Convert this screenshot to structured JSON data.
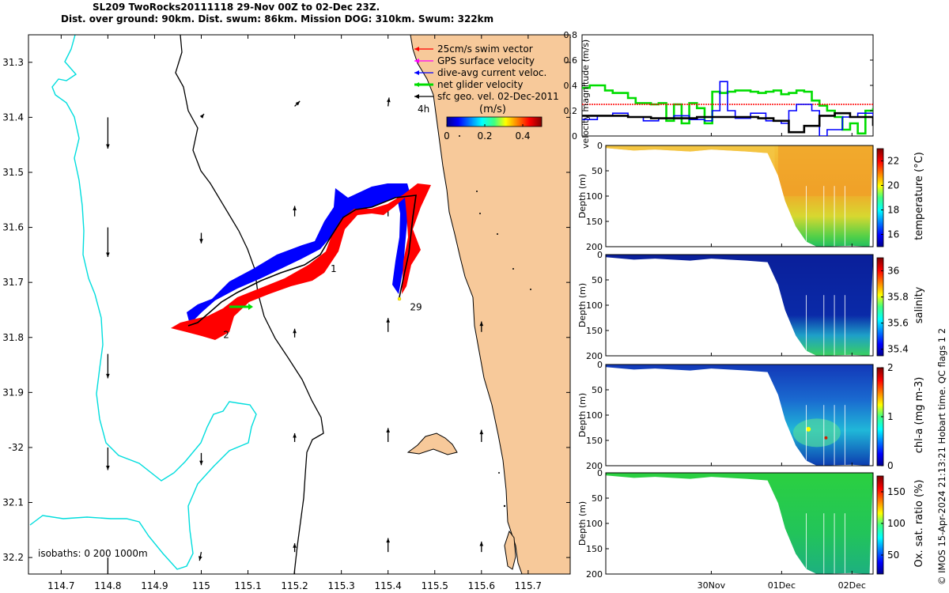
{
  "title": {
    "line1": "SL209 TwoRocks20111118 29-Nov 00Z to 02-Dec 23Z.",
    "line2": "Dist. over ground: 90km. Dist. swum: 86km. Mission DOG: 310km. Swum: 322km"
  },
  "credit": "© IMOS 15-Apr-2024 21:13:21 Hobart time. QC flags 1  2",
  "chart_data": [
    {
      "type": "map",
      "xlim": [
        114.63,
        115.79
      ],
      "ylim": [
        32.23,
        31.25
      ],
      "x_ticks": [
        114.7,
        114.8,
        114.9,
        115,
        115.1,
        115.2,
        115.3,
        115.4,
        115.5,
        115.6,
        115.7
      ],
      "x_tick_labels": [
        "114.7",
        "114.8",
        "114.9",
        "115",
        "115.1",
        "115.2",
        "115.3",
        "115.4",
        "115.5",
        "115.6",
        "115.7"
      ],
      "y_ticks": [
        31.3,
        31.4,
        31.5,
        31.6,
        31.7,
        31.8,
        31.9,
        32.0,
        32.1,
        32.2
      ],
      "y_tick_labels": [
        "31.3",
        "31.4",
        "31.5",
        "31.6",
        "31.7",
        "31.8",
        "31.9",
        "-32",
        "32.1",
        "32.2"
      ],
      "legend": [
        {
          "label": "25cm/s swim vector",
          "color": "#ff0000"
        },
        {
          "label": "GPS surface velocity",
          "color": "#ff00ff"
        },
        {
          "label": "dive-avg current veloc.",
          "color": "#0000ff"
        },
        {
          "label": "net glider velocity",
          "color": "#00dd00"
        },
        {
          "label": "sfc geo. vel. 02-Dec-2011",
          "color": "#000000"
        }
      ],
      "legend_extra": "4h",
      "colorbar": {
        "label": "(m/s)",
        "ticks": [
          0,
          0.2,
          0.4
        ],
        "tick_labels": [
          "0",
          "0.2",
          "0.4"
        ],
        "range": [
          0,
          0.5
        ]
      },
      "isobath_note": "isobaths: 0   200  1000m",
      "track_labels": [
        {
          "text": "29",
          "lon": 115.43,
          "lat": 31.745
        },
        {
          "text": "1",
          "lon": 115.26,
          "lat": 31.675
        },
        {
          "text": "2",
          "lon": 115.03,
          "lat": 31.795
        }
      ],
      "track": [
        {
          "lon": 115.43,
          "lat": 31.74
        },
        {
          "lon": 115.45,
          "lat": 31.67
        },
        {
          "lon": 115.47,
          "lat": 31.55
        },
        {
          "lon": 115.4,
          "lat": 31.56
        },
        {
          "lon": 115.37,
          "lat": 31.58
        },
        {
          "lon": 115.31,
          "lat": 31.58
        },
        {
          "lon": 115.28,
          "lat": 31.59
        },
        {
          "lon": 115.24,
          "lat": 31.67
        },
        {
          "lon": 115.19,
          "lat": 31.71
        },
        {
          "lon": 115.12,
          "lat": 31.73
        },
        {
          "lon": 115.05,
          "lat": 31.77
        },
        {
          "lon": 115.03,
          "lat": 31.78
        },
        {
          "lon": 115.02,
          "lat": 31.785
        },
        {
          "lon": 114.98,
          "lat": 31.79
        }
      ],
      "surface_vectors": [
        {
          "lon": 114.8,
          "lat": 31.4,
          "u": 0.0,
          "v": -0.9
        },
        {
          "lon": 114.8,
          "lat": 31.6,
          "u": 0.0,
          "v": -0.85
        },
        {
          "lon": 114.8,
          "lat": 31.83,
          "u": 0.0,
          "v": -0.7
        },
        {
          "lon": 114.8,
          "lat": 32.0,
          "u": 0.0,
          "v": -0.65
        },
        {
          "lon": 114.8,
          "lat": 32.2,
          "u": 0.0,
          "v": -0.6
        },
        {
          "lon": 115.0,
          "lat": 31.4,
          "u": 0.08,
          "v": 0.1
        },
        {
          "lon": 115.0,
          "lat": 31.61,
          "u": 0.0,
          "v": -0.3
        },
        {
          "lon": 115.0,
          "lat": 32.01,
          "u": 0.0,
          "v": -0.35
        },
        {
          "lon": 115.0,
          "lat": 32.19,
          "u": -0.05,
          "v": -0.25
        },
        {
          "lon": 115.2,
          "lat": 31.38,
          "u": 0.15,
          "v": 0.15
        },
        {
          "lon": 115.2,
          "lat": 31.58,
          "u": 0.0,
          "v": 0.3
        },
        {
          "lon": 115.2,
          "lat": 31.8,
          "u": 0.0,
          "v": 0.25
        },
        {
          "lon": 115.2,
          "lat": 31.99,
          "u": 0.0,
          "v": 0.25
        },
        {
          "lon": 115.2,
          "lat": 32.19,
          "u": 0.0,
          "v": 0.25
        },
        {
          "lon": 115.4,
          "lat": 31.38,
          "u": 0.03,
          "v": 0.25
        },
        {
          "lon": 115.4,
          "lat": 31.58,
          "u": 0.0,
          "v": 0.3
        },
        {
          "lon": 115.4,
          "lat": 31.79,
          "u": 0.0,
          "v": 0.4
        },
        {
          "lon": 115.4,
          "lat": 31.99,
          "u": 0.0,
          "v": 0.4
        },
        {
          "lon": 115.4,
          "lat": 32.19,
          "u": 0.0,
          "v": 0.4
        },
        {
          "lon": 115.6,
          "lat": 31.79,
          "u": 0.0,
          "v": 0.3
        },
        {
          "lon": 115.6,
          "lat": 31.99,
          "u": 0.0,
          "v": 0.35
        },
        {
          "lon": 115.6,
          "lat": 32.19,
          "u": 0.0,
          "v": 0.3
        }
      ]
    },
    {
      "type": "line",
      "ylabel": "velocity magnitude (m/s)",
      "ylim": [
        0,
        0.8
      ],
      "y_ticks": [
        0,
        0.2,
        0.4,
        0.6,
        0.8
      ],
      "y_tick_labels": [
        "0",
        "0.2",
        "0.4",
        "0.6",
        "0.8"
      ],
      "xlim": [
        28.5,
        32.3
      ],
      "series": [
        {
          "color": "#00dd00",
          "x": [
            28.5,
            28.6,
            28.8,
            28.9,
            29.1,
            29.2,
            29.4,
            29.5,
            29.6,
            29.7,
            29.8,
            29.9,
            30.0,
            30.1,
            30.2,
            30.3,
            30.4,
            30.5,
            30.6,
            30.7,
            30.8,
            30.9,
            31.0,
            31.1,
            31.2,
            31.3,
            31.4,
            31.5,
            31.6,
            31.7,
            31.8,
            31.9,
            32.0,
            32.1,
            32.2,
            32.3
          ],
          "y": [
            0.38,
            0.4,
            0.36,
            0.34,
            0.3,
            0.26,
            0.25,
            0.26,
            0.12,
            0.25,
            0.1,
            0.26,
            0.22,
            0.1,
            0.35,
            0.34,
            0.35,
            0.36,
            0.36,
            0.35,
            0.34,
            0.35,
            0.36,
            0.33,
            0.34,
            0.36,
            0.35,
            0.28,
            0.24,
            0.2,
            0.15,
            0.05,
            0.1,
            0.02,
            0.2,
            0.22
          ]
        },
        {
          "color": "#ff0000",
          "x": [
            28.5,
            32.3
          ],
          "y": [
            0.25,
            0.25
          ]
        },
        {
          "color": "#0000ff",
          "x": [
            28.5,
            28.7,
            28.9,
            29.1,
            29.3,
            29.5,
            29.7,
            29.9,
            30.1,
            30.2,
            30.3,
            30.4,
            30.5,
            30.7,
            30.9,
            31.1,
            31.2,
            31.3,
            31.5,
            31.6,
            31.7,
            31.9,
            32.1,
            32.3
          ],
          "y": [
            0.13,
            0.16,
            0.18,
            0.15,
            0.12,
            0.14,
            0.16,
            0.13,
            0.12,
            0.2,
            0.43,
            0.2,
            0.14,
            0.18,
            0.12,
            0.1,
            0.2,
            0.25,
            0.2,
            0.0,
            0.05,
            0.15,
            0.18,
            0.1
          ]
        },
        {
          "color": "#000000",
          "x": [
            28.5,
            28.8,
            29.1,
            29.4,
            29.7,
            30.0,
            30.3,
            30.6,
            30.8,
            31.0,
            31.2,
            31.4,
            31.6,
            31.8,
            32.0,
            32.3
          ],
          "y": [
            0.16,
            0.16,
            0.15,
            0.14,
            0.14,
            0.15,
            0.15,
            0.15,
            0.14,
            0.12,
            0.03,
            0.08,
            0.16,
            0.18,
            0.15,
            0.08
          ]
        }
      ]
    },
    {
      "type": "heatmap",
      "variable": "temperature",
      "ylabel": "Depth (m)",
      "clabel": "temperature (°C)",
      "ylim": [
        0,
        200
      ],
      "y_ticks": [
        0,
        50,
        100,
        150,
        200
      ],
      "y_tick_labels": [
        "0",
        "50",
        "100",
        "150",
        "200"
      ],
      "clim": [
        15,
        23
      ],
      "c_ticks": [
        16,
        18,
        20,
        22
      ],
      "c_tick_labels": [
        "16",
        "18",
        "20",
        "22"
      ]
    },
    {
      "type": "heatmap",
      "variable": "salinity",
      "ylabel": "Depth (m)",
      "clabel": "salinity",
      "ylim": [
        0,
        200
      ],
      "y_ticks": [
        0,
        50,
        100,
        150,
        200
      ],
      "y_tick_labels": [
        "0",
        "50",
        "100",
        "150",
        "200"
      ],
      "clim": [
        35.35,
        36.1
      ],
      "c_ticks": [
        35.4,
        35.6,
        35.8,
        36
      ],
      "c_tick_labels": [
        "35.4",
        "35.6",
        "35.8",
        "36"
      ]
    },
    {
      "type": "heatmap",
      "variable": "chlorophyll",
      "ylabel": "Depth (m)",
      "clabel": "chl-a (mg m-3)",
      "ylim": [
        0,
        200
      ],
      "y_ticks": [
        0,
        50,
        100,
        150,
        200
      ],
      "y_tick_labels": [
        "0",
        "50",
        "100",
        "150",
        "200"
      ],
      "clim": [
        0,
        2
      ],
      "c_ticks": [
        0,
        1,
        2
      ],
      "c_tick_labels": [
        "0",
        "1",
        "2"
      ]
    },
    {
      "type": "heatmap",
      "variable": "oxygen",
      "ylabel": "Depth (m)",
      "clabel": "Ox. sat. ratio (%)",
      "ylim": [
        0,
        200
      ],
      "y_ticks": [
        0,
        50,
        100,
        150,
        200
      ],
      "y_tick_labels": [
        "0",
        "50",
        "100",
        "150",
        "200"
      ],
      "clim": [
        20,
        175
      ],
      "c_ticks": [
        50,
        100,
        150
      ],
      "c_tick_labels": [
        "50",
        "100",
        "150"
      ],
      "x_ticks": [
        30,
        31,
        32
      ],
      "x_tick_labels": [
        "30Nov",
        "01Dec",
        "02Dec"
      ]
    }
  ]
}
